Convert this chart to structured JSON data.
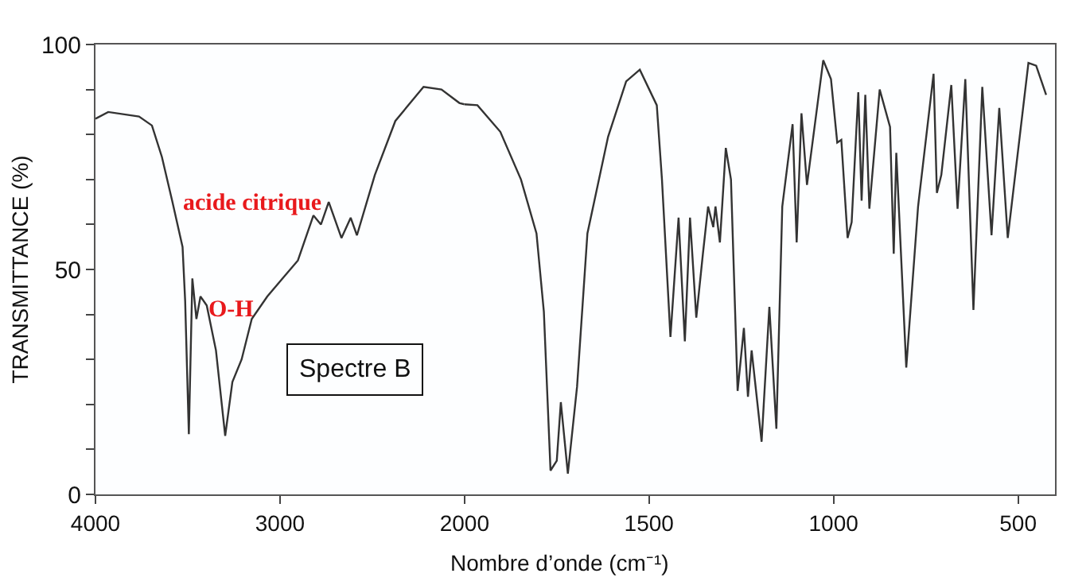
{
  "chart_data": [
    {
      "type": "line",
      "ylabel": "TRANSMITTANCE (%)",
      "xlim": [
        4000,
        2000
      ],
      "xticks": [
        4000,
        3000,
        2000
      ],
      "ylim": [
        0,
        100
      ],
      "yticks": [
        0,
        {
          "value": 10,
          "label": null
        },
        {
          "value": 20,
          "label": null
        },
        {
          "value": 30,
          "label": null
        },
        {
          "value": 40,
          "label": null
        },
        50,
        {
          "value": 60,
          "label": null
        },
        {
          "value": 70,
          "label": null
        },
        {
          "value": 80,
          "label": null
        },
        {
          "value": 90,
          "label": null
        },
        100
      ],
      "grid": false,
      "x": [
        4000,
        3931,
        3764,
        3694,
        3640,
        3583,
        3528,
        3514,
        3494,
        3475,
        3453,
        3431,
        3397,
        3347,
        3297,
        3258,
        3208,
        3153,
        3069,
        2986,
        2903,
        2819,
        2778,
        2736,
        2667,
        2617,
        2583,
        2486,
        2375,
        2222,
        2125,
        2028,
        2000
      ],
      "series": [
        {
          "color": "#333333",
          "values": [
            83.5,
            85,
            84,
            82,
            75,
            65,
            55,
            43,
            13.4,
            48,
            39,
            44,
            42,
            32,
            13,
            25,
            30,
            39,
            44,
            48,
            52,
            62,
            60,
            65,
            57,
            61.5,
            57.6,
            71,
            83,
            90.6,
            90,
            87,
            86.7
          ]
        }
      ],
      "annotations": [
        "acide citrique",
        "O-H",
        "Spectre B"
      ]
    },
    {
      "type": "line",
      "xlabel": "Nombre d’onde (cm⁻¹)",
      "xlim": [
        2000,
        400
      ],
      "xticks": [
        {
          "value": 2000,
          "label": null
        },
        1500,
        1000,
        500
      ],
      "ylim": [
        0,
        100
      ],
      "tick_labels": "x",
      "grid": false,
      "x": [
        2000,
        1965,
        1903,
        1847,
        1805,
        1785,
        1767,
        1750,
        1739,
        1720,
        1695,
        1667,
        1611,
        1562,
        1525,
        1479,
        1465,
        1442,
        1420,
        1403,
        1389,
        1372,
        1354,
        1340,
        1326,
        1320,
        1308,
        1292,
        1278,
        1260,
        1243,
        1232,
        1222,
        1195,
        1174,
        1155,
        1139,
        1111,
        1100,
        1087,
        1072,
        1028,
        1007,
        990,
        979,
        962,
        951,
        933,
        924,
        914,
        903,
        875,
        847,
        837,
        830,
        803,
        771,
        729,
        720,
        708,
        681,
        664,
        643,
        621,
        597,
        572,
        551,
        528,
        472,
        451,
        424
      ],
      "series": [
        {
          "color": "#333333",
          "values": [
            86.7,
            86.5,
            80.6,
            70,
            58,
            40.6,
            5.3,
            7.5,
            20.5,
            4.6,
            24,
            58,
            79.5,
            91.8,
            94.4,
            86.5,
            70,
            35,
            61.5,
            34,
            61.5,
            39.3,
            53.5,
            64,
            59.4,
            64,
            56,
            77,
            70,
            23,
            37,
            21.7,
            32,
            11.7,
            41.7,
            14.6,
            64,
            82.3,
            56,
            84.7,
            68.8,
            96.5,
            92.3,
            78.2,
            78.8,
            57,
            60.5,
            89.4,
            65.3,
            88.8,
            63.5,
            90,
            81.7,
            53.5,
            75.9,
            28.2,
            64,
            93.5,
            67,
            71,
            91,
            63.5,
            92.3,
            41,
            90.6,
            57.6,
            85.9,
            57,
            95.9,
            95.3,
            88.8
          ]
        }
      ]
    }
  ]
}
